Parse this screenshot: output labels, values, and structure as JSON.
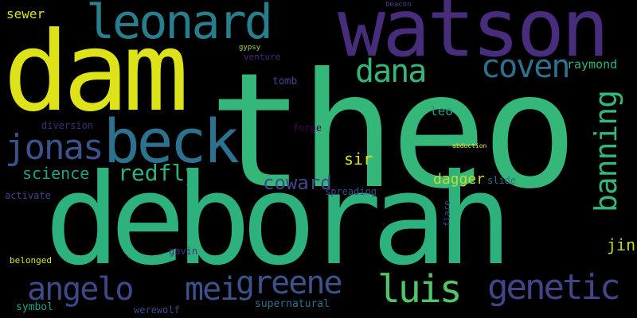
{
  "words": [
    {
      "id": "theo",
      "text": "theo",
      "color": "#35b779"
    },
    {
      "id": "watson",
      "text": "watson",
      "color": "#472d7b"
    },
    {
      "id": "dam",
      "text": "dam",
      "color": "#dde318"
    },
    {
      "id": "deborah",
      "text": "deborah",
      "color": "#2db27d"
    },
    {
      "id": "beck",
      "text": "beck",
      "color": "#2c728e"
    },
    {
      "id": "leonard",
      "text": "leonard",
      "color": "#277f8e"
    },
    {
      "id": "jonas",
      "text": "jonas",
      "color": "#3b528b"
    },
    {
      "id": "coven",
      "text": "coven",
      "color": "#2c728e"
    },
    {
      "id": "dana",
      "text": "dana",
      "color": "#35b779"
    },
    {
      "id": "luis",
      "text": "luis",
      "color": "#52c569"
    },
    {
      "id": "greene",
      "text": "greene",
      "color": "#3b528b"
    },
    {
      "id": "genetic",
      "text": "genetic",
      "color": "#414487"
    },
    {
      "id": "angelo",
      "text": "angelo",
      "color": "#3e4989"
    },
    {
      "id": "mei",
      "text": "mei",
      "color": "#3b528b"
    },
    {
      "id": "banning",
      "text": "banning",
      "color": "#35b779"
    },
    {
      "id": "redfly",
      "text": "redfly",
      "color": "#2db27d"
    },
    {
      "id": "science",
      "text": "science",
      "color": "#1fa187"
    },
    {
      "id": "coward",
      "text": "coward",
      "color": "#3e4989"
    },
    {
      "id": "sewer",
      "text": "sewer",
      "color": "#dde318"
    },
    {
      "id": "raymond",
      "text": "raymond",
      "color": "#2db27d"
    },
    {
      "id": "dagger",
      "text": "dagger",
      "color": "#c2df23"
    },
    {
      "id": "sir",
      "text": "sir",
      "color": "#dde318"
    },
    {
      "id": "jin",
      "text": "jin",
      "color": "#b5de2b"
    },
    {
      "id": "leo",
      "text": "leo",
      "color": "#1f9e89"
    },
    {
      "id": "tomb",
      "text": "tomb",
      "color": "#3e4989"
    },
    {
      "id": "diversion",
      "text": "diversion",
      "color": "#482878"
    },
    {
      "id": "forge",
      "text": "forge",
      "color": "#440154"
    },
    {
      "id": "activate",
      "text": "activate",
      "color": "#414487"
    },
    {
      "id": "spreading",
      "text": "spreading",
      "color": "#3e4989"
    },
    {
      "id": "slide",
      "text": "slide",
      "color": "#2c728e"
    },
    {
      "id": "symbol",
      "text": "symbol",
      "color": "#20a386"
    },
    {
      "id": "werewolf",
      "text": "werewolf",
      "color": "#3e4989"
    },
    {
      "id": "supernatural",
      "text": "supernatural",
      "color": "#2c728e"
    },
    {
      "id": "belonged",
      "text": "belonged",
      "color": "#dde318"
    },
    {
      "id": "gavin",
      "text": "gavin",
      "color": "#472d7b"
    },
    {
      "id": "venture",
      "text": "venture",
      "color": "#482878"
    },
    {
      "id": "gypsy",
      "text": "gypsy",
      "color": "#a8db34"
    },
    {
      "id": "flare",
      "text": "flare",
      "color": "#414487"
    },
    {
      "id": "beacon",
      "text": "beacon",
      "color": "#414487"
    },
    {
      "id": "abduction",
      "text": "abduction",
      "color": "#fde725"
    }
  ]
}
